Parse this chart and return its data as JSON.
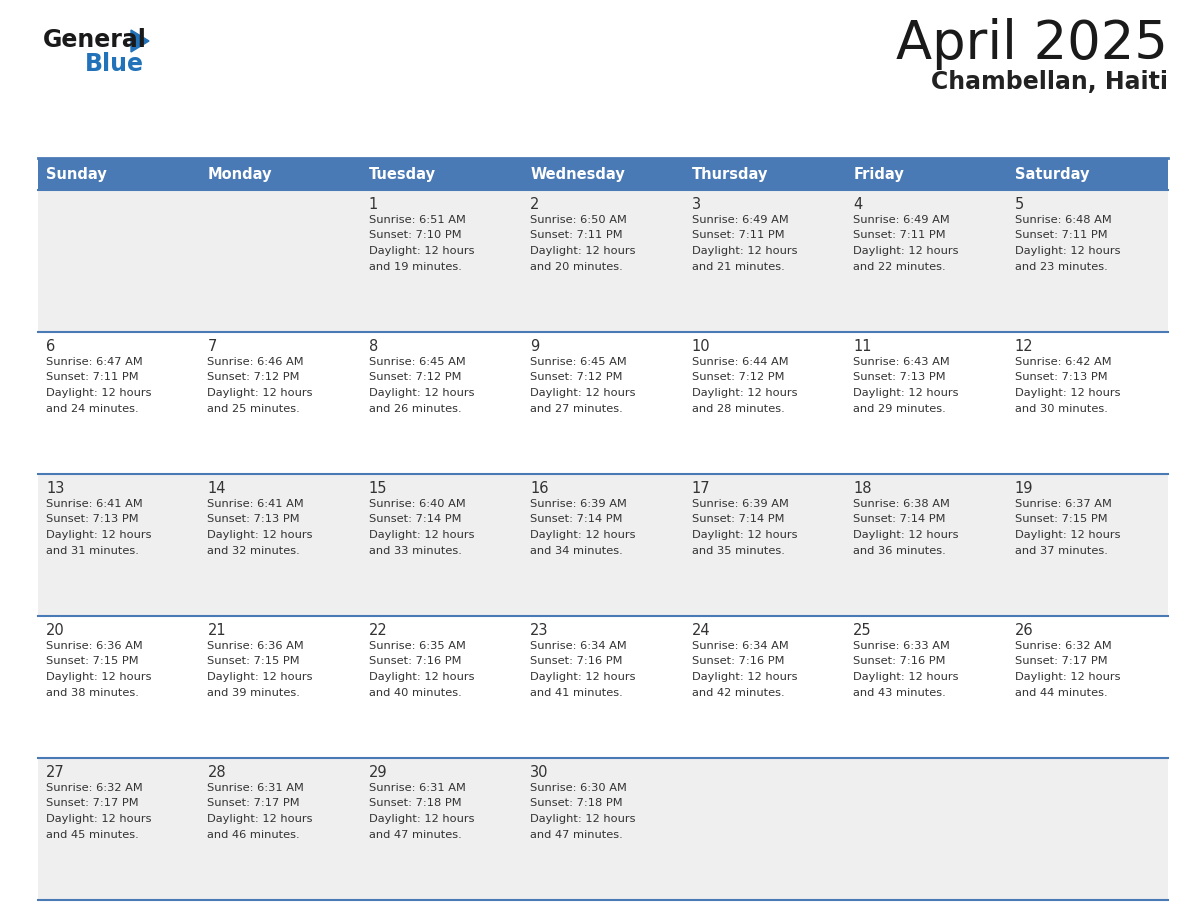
{
  "title": "April 2025",
  "subtitle": "Chambellan, Haiti",
  "header_bg": "#4a7ab5",
  "header_text_color": "#ffffff",
  "days_of_week": [
    "Sunday",
    "Monday",
    "Tuesday",
    "Wednesday",
    "Thursday",
    "Friday",
    "Saturday"
  ],
  "row_bg_odd": "#efefef",
  "row_bg_even": "#ffffff",
  "cell_text_color": "#333333",
  "border_color": "#4a7ab5",
  "title_color": "#1a1a1a",
  "subtitle_color": "#222222",
  "weeks": [
    [
      {
        "day": "",
        "sunrise": "",
        "sunset": "",
        "daylight": ""
      },
      {
        "day": "",
        "sunrise": "",
        "sunset": "",
        "daylight": ""
      },
      {
        "day": "1",
        "sunrise": "6:51 AM",
        "sunset": "7:10 PM",
        "daylight": "12 hours and 19 minutes."
      },
      {
        "day": "2",
        "sunrise": "6:50 AM",
        "sunset": "7:11 PM",
        "daylight": "12 hours and 20 minutes."
      },
      {
        "day": "3",
        "sunrise": "6:49 AM",
        "sunset": "7:11 PM",
        "daylight": "12 hours and 21 minutes."
      },
      {
        "day": "4",
        "sunrise": "6:49 AM",
        "sunset": "7:11 PM",
        "daylight": "12 hours and 22 minutes."
      },
      {
        "day": "5",
        "sunrise": "6:48 AM",
        "sunset": "7:11 PM",
        "daylight": "12 hours and 23 minutes."
      }
    ],
    [
      {
        "day": "6",
        "sunrise": "6:47 AM",
        "sunset": "7:11 PM",
        "daylight": "12 hours and 24 minutes."
      },
      {
        "day": "7",
        "sunrise": "6:46 AM",
        "sunset": "7:12 PM",
        "daylight": "12 hours and 25 minutes."
      },
      {
        "day": "8",
        "sunrise": "6:45 AM",
        "sunset": "7:12 PM",
        "daylight": "12 hours and 26 minutes."
      },
      {
        "day": "9",
        "sunrise": "6:45 AM",
        "sunset": "7:12 PM",
        "daylight": "12 hours and 27 minutes."
      },
      {
        "day": "10",
        "sunrise": "6:44 AM",
        "sunset": "7:12 PM",
        "daylight": "12 hours and 28 minutes."
      },
      {
        "day": "11",
        "sunrise": "6:43 AM",
        "sunset": "7:13 PM",
        "daylight": "12 hours and 29 minutes."
      },
      {
        "day": "12",
        "sunrise": "6:42 AM",
        "sunset": "7:13 PM",
        "daylight": "12 hours and 30 minutes."
      }
    ],
    [
      {
        "day": "13",
        "sunrise": "6:41 AM",
        "sunset": "7:13 PM",
        "daylight": "12 hours and 31 minutes."
      },
      {
        "day": "14",
        "sunrise": "6:41 AM",
        "sunset": "7:13 PM",
        "daylight": "12 hours and 32 minutes."
      },
      {
        "day": "15",
        "sunrise": "6:40 AM",
        "sunset": "7:14 PM",
        "daylight": "12 hours and 33 minutes."
      },
      {
        "day": "16",
        "sunrise": "6:39 AM",
        "sunset": "7:14 PM",
        "daylight": "12 hours and 34 minutes."
      },
      {
        "day": "17",
        "sunrise": "6:39 AM",
        "sunset": "7:14 PM",
        "daylight": "12 hours and 35 minutes."
      },
      {
        "day": "18",
        "sunrise": "6:38 AM",
        "sunset": "7:14 PM",
        "daylight": "12 hours and 36 minutes."
      },
      {
        "day": "19",
        "sunrise": "6:37 AM",
        "sunset": "7:15 PM",
        "daylight": "12 hours and 37 minutes."
      }
    ],
    [
      {
        "day": "20",
        "sunrise": "6:36 AM",
        "sunset": "7:15 PM",
        "daylight": "12 hours and 38 minutes."
      },
      {
        "day": "21",
        "sunrise": "6:36 AM",
        "sunset": "7:15 PM",
        "daylight": "12 hours and 39 minutes."
      },
      {
        "day": "22",
        "sunrise": "6:35 AM",
        "sunset": "7:16 PM",
        "daylight": "12 hours and 40 minutes."
      },
      {
        "day": "23",
        "sunrise": "6:34 AM",
        "sunset": "7:16 PM",
        "daylight": "12 hours and 41 minutes."
      },
      {
        "day": "24",
        "sunrise": "6:34 AM",
        "sunset": "7:16 PM",
        "daylight": "12 hours and 42 minutes."
      },
      {
        "day": "25",
        "sunrise": "6:33 AM",
        "sunset": "7:16 PM",
        "daylight": "12 hours and 43 minutes."
      },
      {
        "day": "26",
        "sunrise": "6:32 AM",
        "sunset": "7:17 PM",
        "daylight": "12 hours and 44 minutes."
      }
    ],
    [
      {
        "day": "27",
        "sunrise": "6:32 AM",
        "sunset": "7:17 PM",
        "daylight": "12 hours and 45 minutes."
      },
      {
        "day": "28",
        "sunrise": "6:31 AM",
        "sunset": "7:17 PM",
        "daylight": "12 hours and 46 minutes."
      },
      {
        "day": "29",
        "sunrise": "6:31 AM",
        "sunset": "7:18 PM",
        "daylight": "12 hours and 47 minutes."
      },
      {
        "day": "30",
        "sunrise": "6:30 AM",
        "sunset": "7:18 PM",
        "daylight": "12 hours and 47 minutes."
      },
      {
        "day": "",
        "sunrise": "",
        "sunset": "",
        "daylight": ""
      },
      {
        "day": "",
        "sunrise": "",
        "sunset": "",
        "daylight": ""
      },
      {
        "day": "",
        "sunrise": "",
        "sunset": "",
        "daylight": ""
      }
    ]
  ],
  "logo_text_general": "General",
  "logo_text_blue": "Blue",
  "logo_color_general": "#1a1a1a",
  "logo_color_blue": "#2272b9",
  "logo_triangle_color": "#2272b9",
  "figw": 11.88,
  "figh": 9.18,
  "dpi": 100
}
